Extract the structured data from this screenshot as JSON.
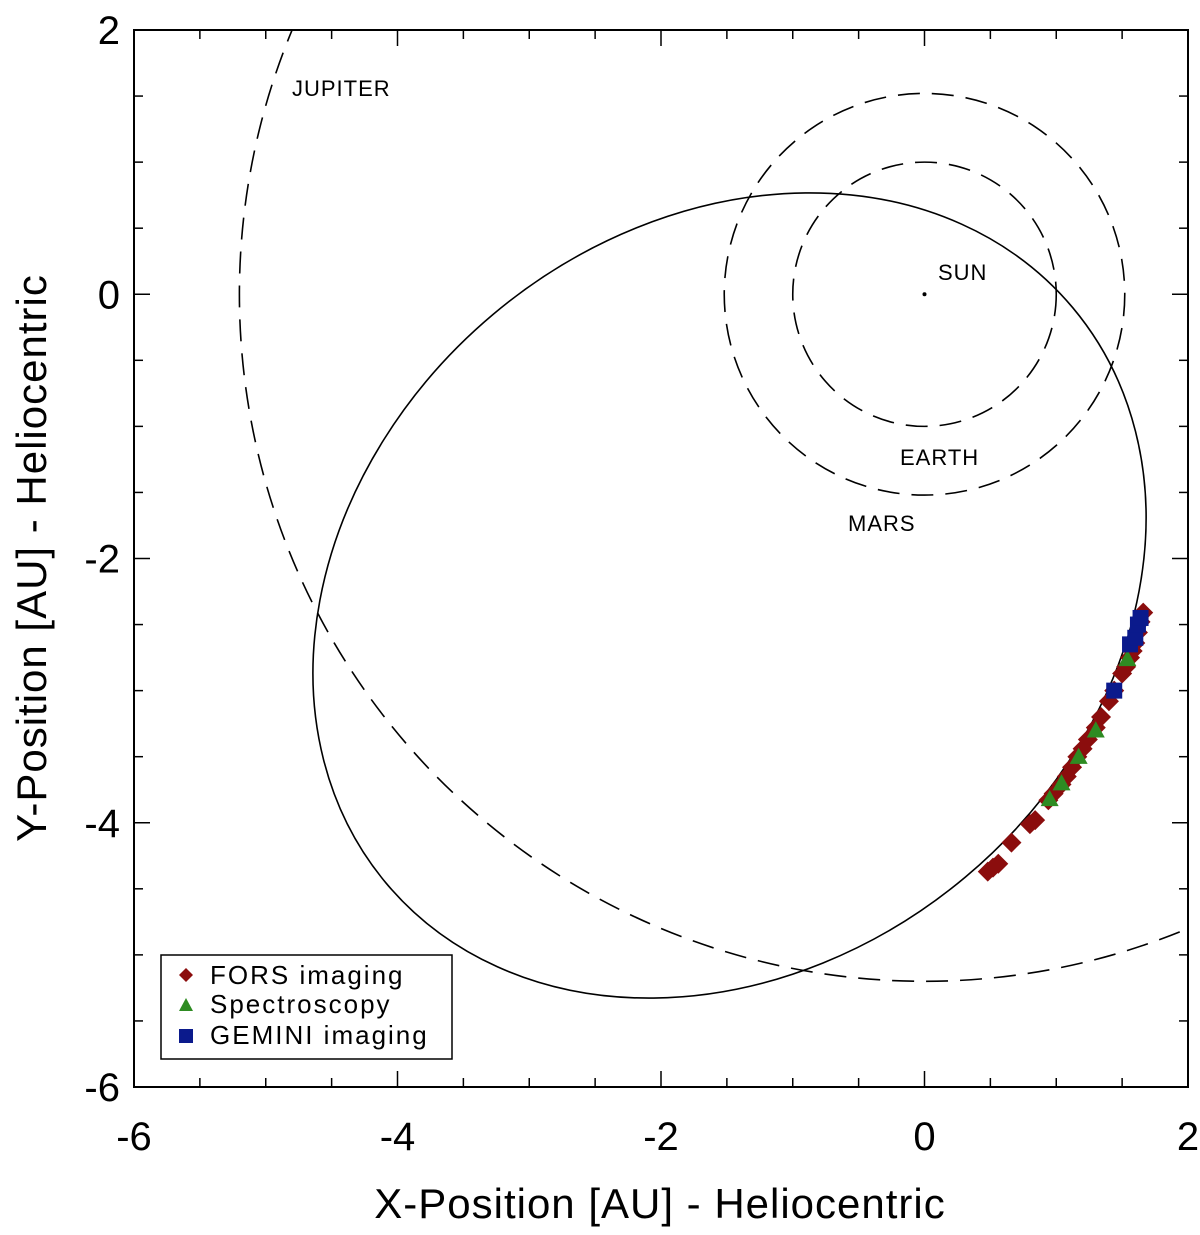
{
  "chart_data": {
    "type": "scatter",
    "title": "",
    "xlabel": "X-Position [AU] - Heliocentric",
    "ylabel": "Y-Position [AU] - Heliocentric",
    "xlim": [
      -6,
      2
    ],
    "ylim": [
      -6,
      2
    ],
    "x_ticks": [
      -6,
      -4,
      -2,
      0,
      2
    ],
    "y_ticks": [
      2,
      0,
      -2,
      -4,
      -6
    ],
    "x_tick_labels": [
      "-6",
      "-4",
      "-2",
      "0",
      "2"
    ],
    "y_tick_labels": [
      "2",
      "0",
      "-2",
      "-4",
      "-6"
    ],
    "minor_tick_step": 0.5,
    "grid": false,
    "sun": {
      "label": "SUN",
      "x": 0,
      "y": 0
    },
    "planet_orbits": [
      {
        "name": "EARTH",
        "label": "EARTH",
        "a": 1.0,
        "e": 0.0,
        "style": "dashed"
      },
      {
        "name": "MARS",
        "label": "MARS",
        "a": 1.52,
        "e": 0.0,
        "style": "dashed"
      },
      {
        "name": "JUPITER",
        "label": "JUPITER",
        "a": 5.2,
        "e": 0.0,
        "style": "dashed"
      }
    ],
    "object_orbit": {
      "style": "solid",
      "center": [
        -1.48,
        -2.28
      ],
      "semi_major": 3.4,
      "semi_minor": 2.78,
      "rotation_deg": -40
    },
    "series": [
      {
        "name": "FORS imaging",
        "marker": "diamond",
        "color": "#8b0d0d",
        "points": [
          [
            0.48,
            -4.37
          ],
          [
            0.52,
            -4.34
          ],
          [
            0.56,
            -4.31
          ],
          [
            0.66,
            -4.15
          ],
          [
            0.8,
            -4.01
          ],
          [
            0.84,
            -3.98
          ],
          [
            0.94,
            -3.83
          ],
          [
            0.98,
            -3.78
          ],
          [
            1.04,
            -3.71
          ],
          [
            1.08,
            -3.65
          ],
          [
            1.12,
            -3.58
          ],
          [
            1.16,
            -3.5
          ],
          [
            1.2,
            -3.44
          ],
          [
            1.24,
            -3.37
          ],
          [
            1.3,
            -3.28
          ],
          [
            1.34,
            -3.2
          ],
          [
            1.4,
            -3.08
          ],
          [
            1.44,
            -3.0
          ],
          [
            1.5,
            -2.87
          ],
          [
            1.53,
            -2.82
          ],
          [
            1.56,
            -2.75
          ],
          [
            1.58,
            -2.7
          ],
          [
            1.6,
            -2.64
          ],
          [
            1.62,
            -2.56
          ],
          [
            1.64,
            -2.48
          ],
          [
            1.66,
            -2.41
          ]
        ]
      },
      {
        "name": "Spectroscopy",
        "marker": "triangle",
        "color": "#2e8b22",
        "points": [
          [
            0.95,
            -3.82
          ],
          [
            1.04,
            -3.7
          ],
          [
            1.17,
            -3.5
          ],
          [
            1.3,
            -3.3
          ],
          [
            1.54,
            -2.76
          ]
        ]
      },
      {
        "name": "GEMINI imaging",
        "marker": "square",
        "color": "#0b1a8c",
        "points": [
          [
            1.44,
            -3.0
          ],
          [
            1.56,
            -2.65
          ],
          [
            1.6,
            -2.6
          ],
          [
            1.62,
            -2.5
          ],
          [
            1.64,
            -2.45
          ]
        ]
      }
    ],
    "legend": {
      "location": "bottom-left",
      "entries": [
        "FORS imaging",
        "Spectroscopy",
        "GEMINI imaging"
      ]
    }
  }
}
